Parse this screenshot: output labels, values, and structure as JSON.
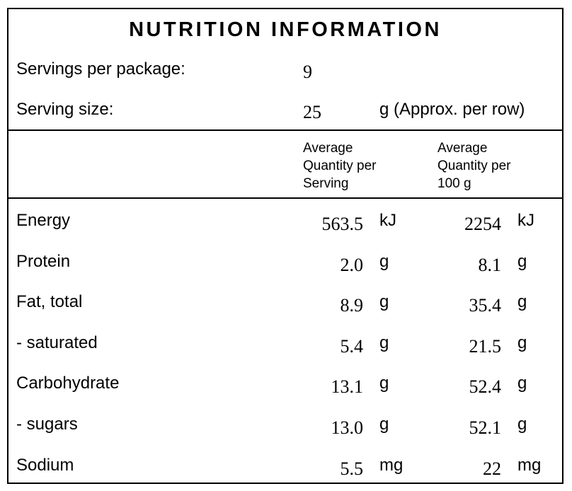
{
  "title": "NUTRITION INFORMATION",
  "servings": {
    "label": "Servings per package:",
    "value": "9"
  },
  "serving_size": {
    "label": "Serving size:",
    "value": "25",
    "unit_note": "g (Approx. per row)"
  },
  "columns": {
    "per_serving": "Average\nQuantity per\nServing",
    "per_100g": "Average\nQuantity per\n100 g"
  },
  "rows": [
    {
      "name": "Energy",
      "per_serving": "563.5",
      "per_serving_unit": "kJ",
      "per_100g": "2254",
      "per_100g_unit": "kJ"
    },
    {
      "name": "Protein",
      "per_serving": "2.0",
      "per_serving_unit": "g",
      "per_100g": "8.1",
      "per_100g_unit": "g"
    },
    {
      "name": "Fat, total",
      "per_serving": "8.9",
      "per_serving_unit": "g",
      "per_100g": "35.4",
      "per_100g_unit": "g"
    },
    {
      "name": "- saturated",
      "per_serving": "5.4",
      "per_serving_unit": "g",
      "per_100g": "21.5",
      "per_100g_unit": "g"
    },
    {
      "name": "Carbohydrate",
      "per_serving": "13.1",
      "per_serving_unit": "g",
      "per_100g": "52.4",
      "per_100g_unit": "g"
    },
    {
      "name": "- sugars",
      "per_serving": "13.0",
      "per_serving_unit": "g",
      "per_100g": "52.1",
      "per_100g_unit": "g"
    },
    {
      "name": "Sodium",
      "per_serving": "5.5",
      "per_serving_unit": "mg",
      "per_100g": "22",
      "per_100g_unit": "mg"
    }
  ]
}
